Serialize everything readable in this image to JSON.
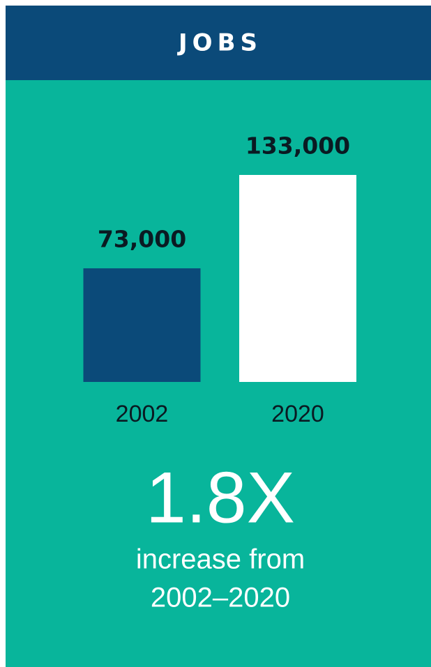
{
  "chart_data": {
    "type": "bar",
    "title": "JOBS",
    "categories": [
      "2002",
      "2020"
    ],
    "values": [
      73000,
      133000
    ],
    "value_labels": [
      "73,000",
      "133,000"
    ],
    "colors": [
      "#0b4a79",
      "#ffffff"
    ],
    "annotations": [
      "1.8X",
      "increase from",
      "2002–2020"
    ]
  }
}
